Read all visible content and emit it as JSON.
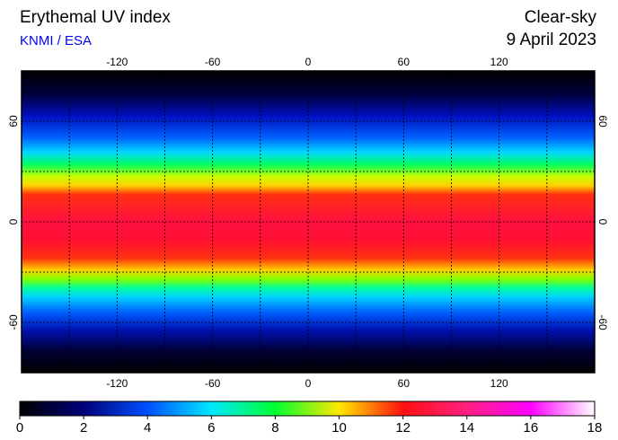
{
  "header": {
    "title": "Erythemal UV index",
    "source": "KNMI / ESA",
    "condition": "Clear-sky",
    "date": "9 April 2023"
  },
  "map": {
    "xlim": [
      -180,
      180
    ],
    "ylim": [
      -90,
      90
    ],
    "xticks": [
      -120,
      -60,
      0,
      60,
      120
    ],
    "yticks": [
      60,
      0,
      -60
    ],
    "grid_lons": [
      -150,
      -120,
      -90,
      -60,
      -30,
      0,
      30,
      60,
      90,
      120,
      150
    ],
    "grid_lats": [
      -60,
      -30,
      0,
      30,
      60
    ]
  },
  "colorbar": {
    "lim": [
      0,
      18
    ],
    "ticks": [
      0,
      2,
      4,
      6,
      8,
      10,
      12,
      14,
      16,
      18
    ],
    "colors": [
      "#000000",
      "#00007a",
      "#0050ff",
      "#00e8ff",
      "#00ff30",
      "#ffe800",
      "#ff1010",
      "#ff2080",
      "#ff00ff",
      "#ffffff"
    ]
  }
}
